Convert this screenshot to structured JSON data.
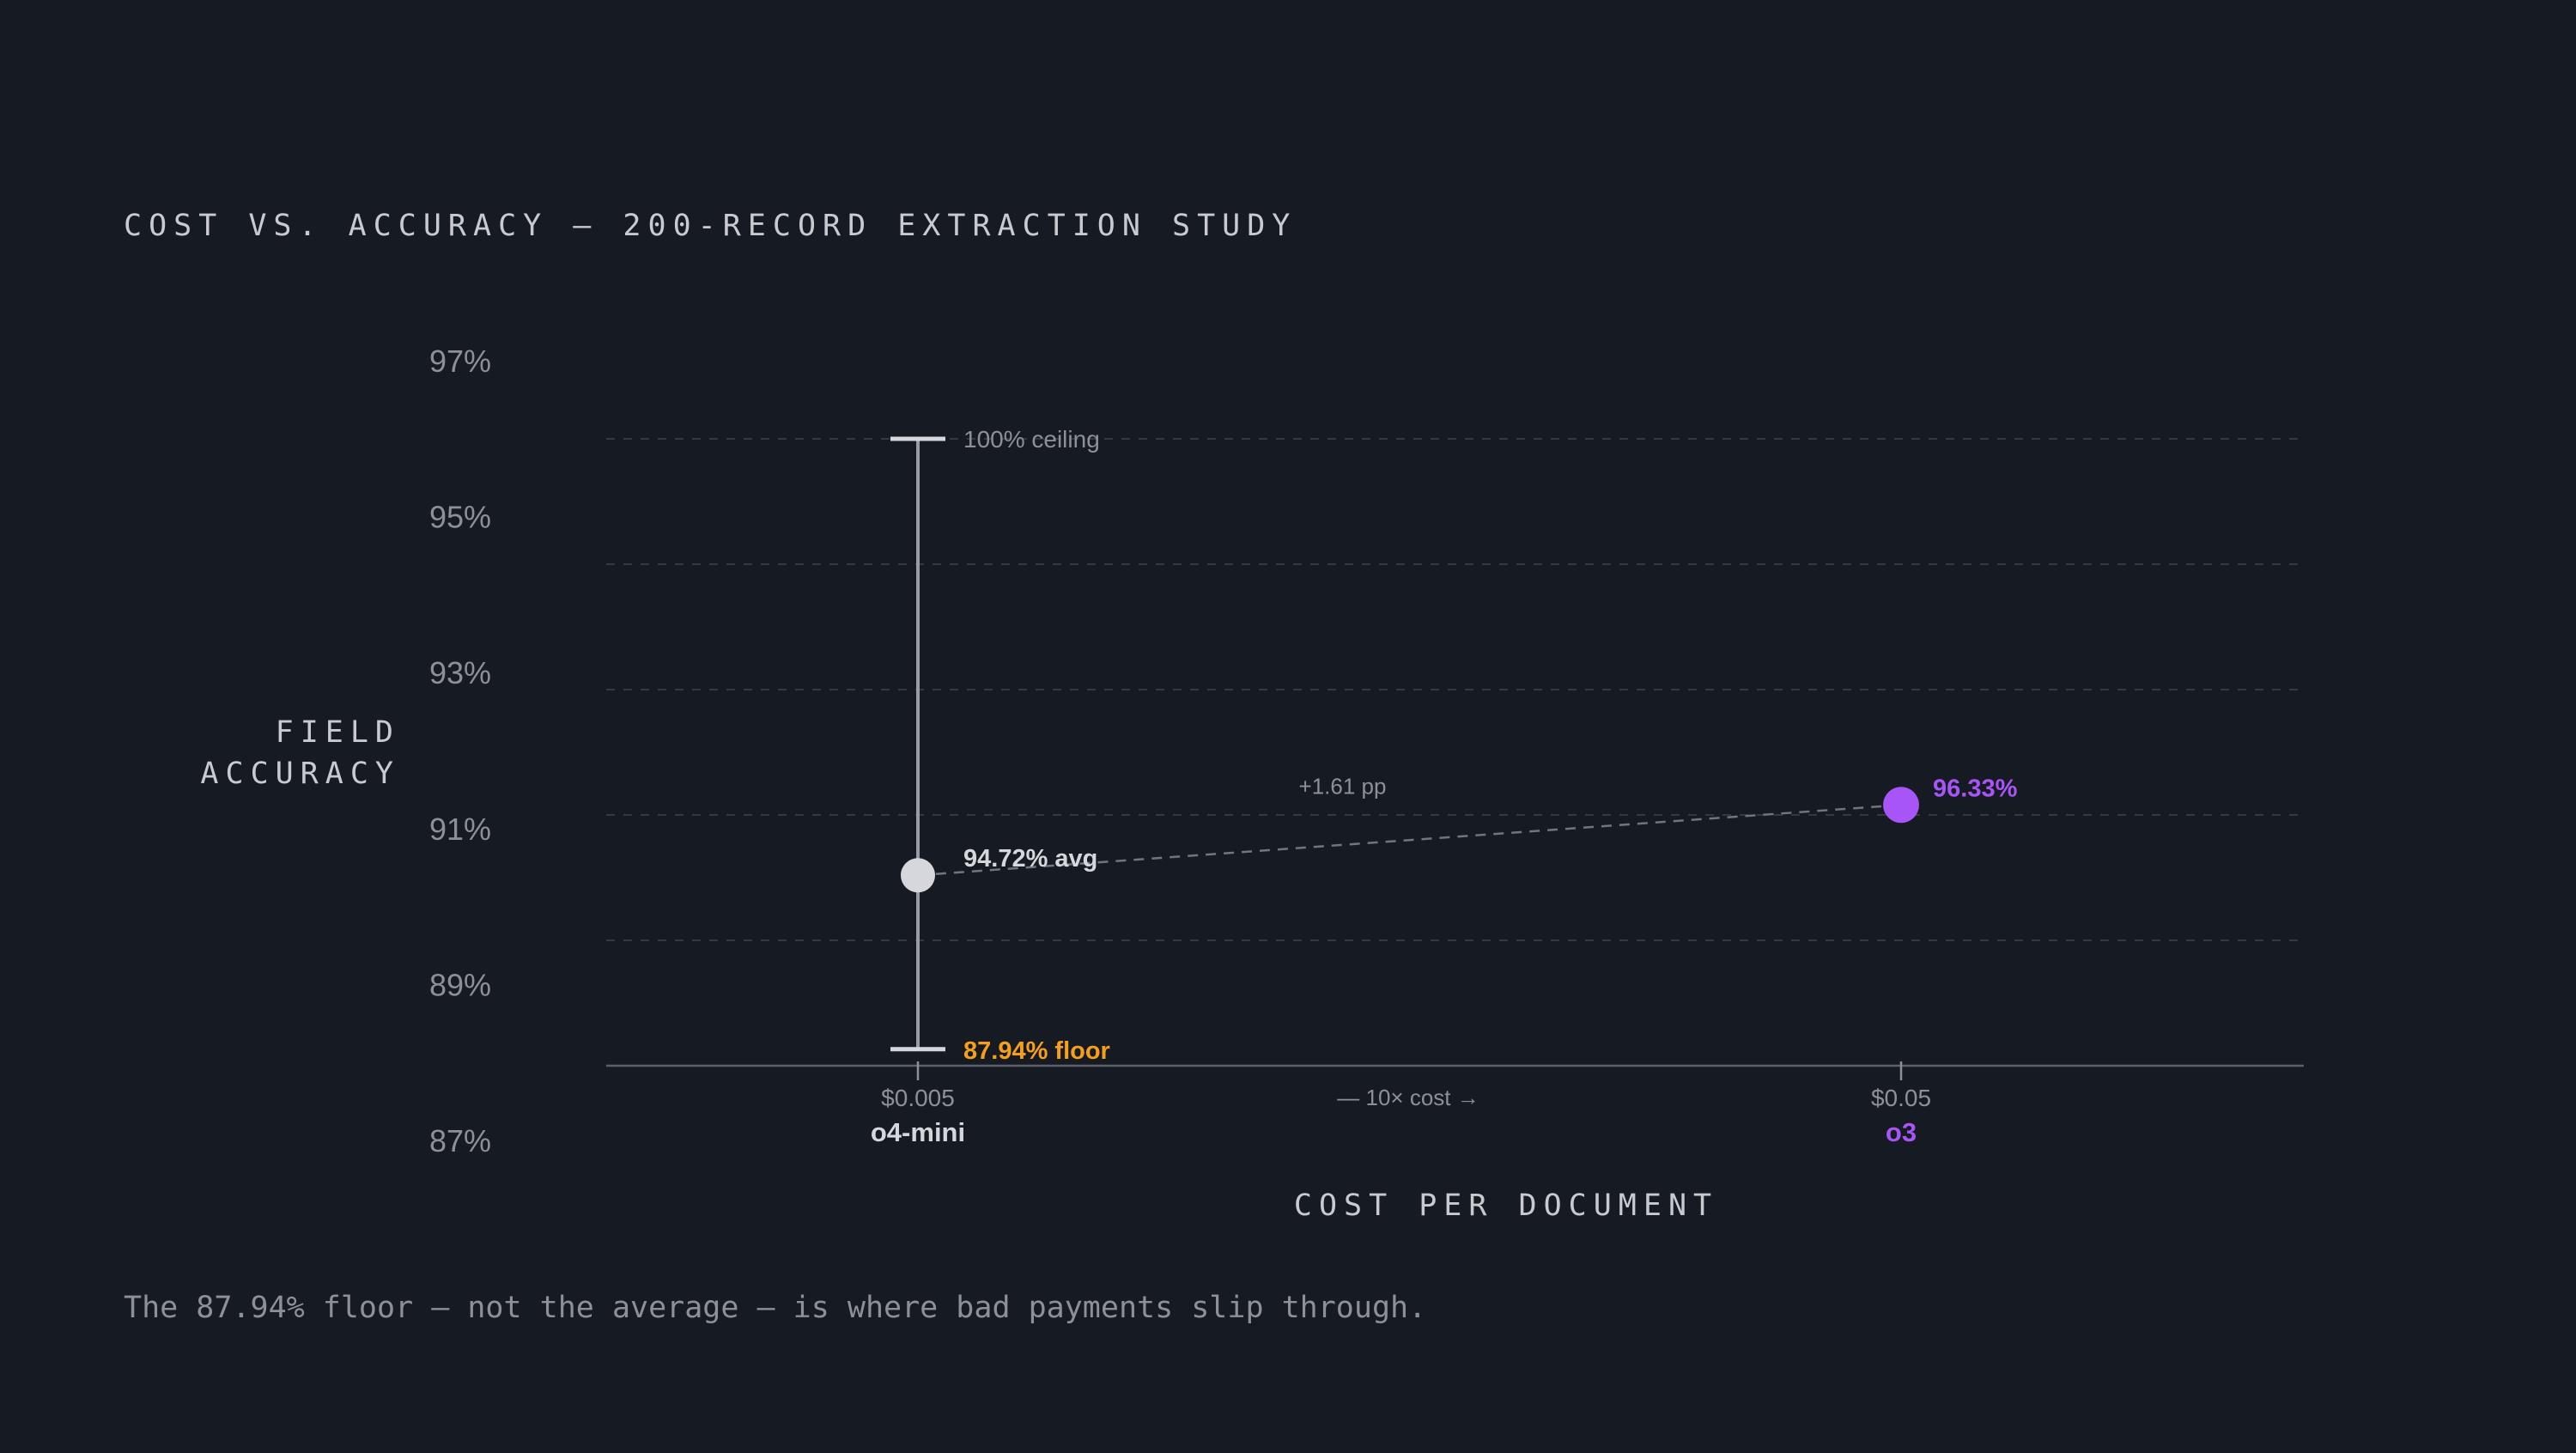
{
  "chart_data": {
    "type": "scatter",
    "title": "COST VS. ACCURACY — 200-RECORD EXTRACTION STUDY",
    "ylabel_lines": [
      "FIELD",
      "ACCURACY"
    ],
    "xlabel": "COST PER DOCUMENT",
    "caption": "The 87.94% floor — not the average — is where bad payments slip through.",
    "y_ticks": [
      {
        "value": 97,
        "label": "97%"
      },
      {
        "value": 95,
        "label": "95%"
      },
      {
        "value": 93,
        "label": "93%"
      },
      {
        "value": 91,
        "label": "91%"
      },
      {
        "value": 89,
        "label": "89%"
      },
      {
        "value": 87,
        "label": "87%"
      }
    ],
    "grid": true,
    "x_scale": "log",
    "points": [
      {
        "model": "o4-mini",
        "cost": 0.005,
        "cost_label": "$0.005",
        "accuracy": 94.72,
        "label": "94.72% avg",
        "range": {
          "ceiling": 100,
          "ceiling_label": "100% ceiling",
          "floor": 87.94,
          "floor_label": "87.94% floor"
        }
      },
      {
        "model": "o3",
        "cost": 0.05,
        "cost_label": "$0.05",
        "accuracy": 96.33,
        "label": "96.33%"
      }
    ],
    "delta_label": "+1.61 pp",
    "cost_ratio_label": "— 10× cost →",
    "colors": {
      "background": "#161a22",
      "o4_mini": "#d6d7dc",
      "o3": "#a855f7",
      "floor": "#f5a01a",
      "muted_text": "#8e9097",
      "grid": "#343841",
      "axis": "#5d6068"
    }
  }
}
